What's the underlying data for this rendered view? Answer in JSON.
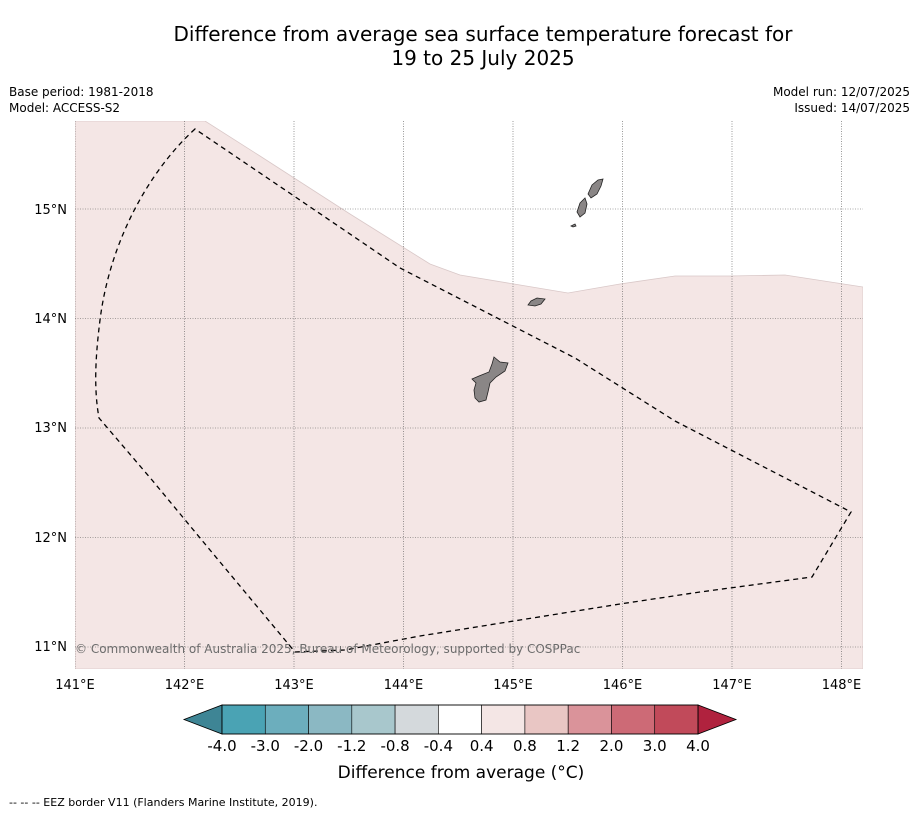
{
  "header": {
    "title_line1": "Difference from average sea surface temperature forecast for",
    "title_line2": "19 to 25 July 2025",
    "base_period": "Base period: 1981-2018",
    "model": "Model: ACCESS-S2",
    "model_run": "Model run: 12/07/2025",
    "issued": "Issued: 14/07/2025"
  },
  "map": {
    "copyright": "© Commonwealth of Australia 2025, Bureau of Meteorology, supported by COSPPac",
    "lon_labels": [
      "141°E",
      "142°E",
      "143°E",
      "144°E",
      "145°E",
      "146°E",
      "147°E",
      "148°E"
    ],
    "lat_labels": [
      "15°N",
      "14°N",
      "13°N",
      "12°N",
      "11°N"
    ],
    "ocean_color": "#f4e6e5",
    "land_color": "#8a8686"
  },
  "colorbar": {
    "tick_labels": [
      "-4.0",
      "-3.0",
      "-2.0",
      "-1.2",
      "-0.8",
      "-0.4",
      "0.4",
      "0.8",
      "1.2",
      "2.0",
      "3.0",
      "4.0"
    ],
    "colors": [
      "#4aa3b4",
      "#6caebd",
      "#8bb8c3",
      "#a8c7cc",
      "#d4d9dc",
      "#ffffff",
      "#f4e6e5",
      "#e9c6c4",
      "#da939a",
      "#cd6a76",
      "#c14a5a"
    ],
    "low_extend_color": "#3e8595",
    "high_extend_color": "#b0223e",
    "label": "Difference from average (°C)"
  },
  "legend": {
    "eez": "--  --  -- EEZ border V11 (Flanders Marine Institute, 2019)."
  }
}
